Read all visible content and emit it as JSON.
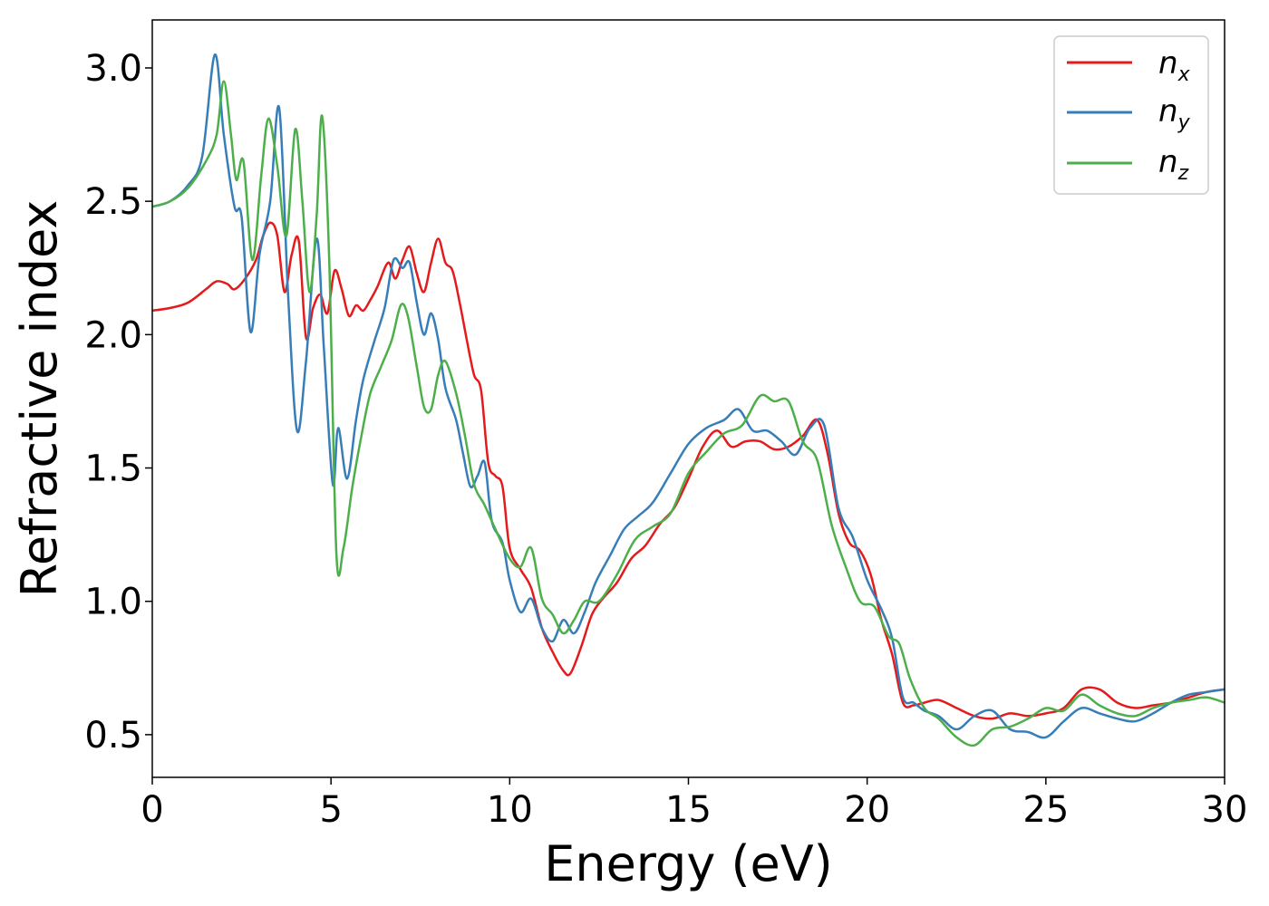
{
  "chart_data": {
    "type": "line",
    "title": "",
    "xlabel": "Energy (eV)",
    "ylabel": "Refractive index",
    "xlim": [
      0,
      30
    ],
    "ylim": [
      0.34,
      3.18
    ],
    "xticks": [
      0,
      5,
      10,
      15,
      20,
      25,
      30
    ],
    "xtick_labels": [
      "0",
      "5",
      "10",
      "15",
      "20",
      "25",
      "30"
    ],
    "yticks": [
      0.5,
      1.0,
      1.5,
      2.0,
      2.5,
      3.0
    ],
    "ytick_labels": [
      "0.5",
      "1.0",
      "1.5",
      "2.0",
      "2.5",
      "3.0"
    ],
    "grid": false,
    "legend": "top-right",
    "series": [
      {
        "name": "n",
        "sub": "x",
        "color": "#e41a1c",
        "x": [
          0,
          0.5,
          1,
          1.5,
          1.8,
          2.1,
          2.3,
          2.6,
          2.9,
          3.1,
          3.3,
          3.5,
          3.7,
          3.9,
          4.1,
          4.3,
          4.5,
          4.7,
          4.9,
          5.1,
          5.3,
          5.5,
          5.7,
          5.9,
          6.1,
          6.3,
          6.6,
          6.8,
          7.0,
          7.2,
          7.4,
          7.6,
          7.8,
          8.0,
          8.2,
          8.4,
          8.6,
          8.8,
          9.0,
          9.2,
          9.4,
          9.6,
          9.8,
          10.0,
          10.3,
          10.6,
          10.9,
          11.2,
          11.5,
          11.7,
          12.0,
          12.3,
          12.6,
          13.0,
          13.4,
          13.8,
          14.2,
          14.6,
          15.0,
          15.4,
          15.8,
          16.2,
          16.6,
          17.0,
          17.4,
          17.8,
          18.2,
          18.6,
          18.9,
          19.2,
          19.5,
          19.8,
          20.1,
          20.4,
          20.7,
          21.0,
          21.3,
          21.6,
          22.0,
          22.5,
          23.0,
          23.5,
          24.0,
          24.5,
          25.0,
          25.5,
          26.0,
          26.5,
          27.0,
          27.5,
          28.0,
          28.5,
          29.0,
          29.5,
          30.0
        ],
        "y": [
          2.09,
          2.1,
          2.12,
          2.17,
          2.2,
          2.19,
          2.17,
          2.21,
          2.28,
          2.37,
          2.42,
          2.37,
          2.16,
          2.3,
          2.35,
          1.99,
          2.1,
          2.15,
          2.08,
          2.24,
          2.17,
          2.07,
          2.11,
          2.09,
          2.13,
          2.18,
          2.27,
          2.21,
          2.28,
          2.33,
          2.23,
          2.16,
          2.27,
          2.36,
          2.27,
          2.24,
          2.12,
          1.98,
          1.85,
          1.79,
          1.52,
          1.47,
          1.43,
          1.2,
          1.12,
          1.05,
          0.9,
          0.81,
          0.74,
          0.73,
          0.83,
          0.95,
          1.01,
          1.07,
          1.16,
          1.21,
          1.29,
          1.35,
          1.46,
          1.58,
          1.64,
          1.58,
          1.6,
          1.6,
          1.57,
          1.58,
          1.62,
          1.68,
          1.55,
          1.33,
          1.22,
          1.19,
          1.1,
          0.93,
          0.8,
          0.62,
          0.61,
          0.62,
          0.63,
          0.6,
          0.57,
          0.56,
          0.58,
          0.57,
          0.58,
          0.6,
          0.67,
          0.67,
          0.62,
          0.6,
          0.61,
          0.62,
          0.64,
          0.66,
          0.67
        ]
      },
      {
        "name": "n",
        "sub": "y",
        "color": "#377eb8",
        "x": [
          0,
          0.5,
          1,
          1.4,
          1.75,
          2.0,
          2.3,
          2.5,
          2.75,
          3.0,
          3.3,
          3.55,
          3.8,
          4.05,
          4.3,
          4.6,
          4.8,
          5.05,
          5.2,
          5.45,
          5.7,
          5.9,
          6.2,
          6.5,
          6.75,
          7.0,
          7.2,
          7.4,
          7.6,
          7.8,
          8.0,
          8.2,
          8.5,
          8.7,
          8.9,
          9.1,
          9.3,
          9.5,
          9.8,
          10.0,
          10.3,
          10.6,
          10.9,
          11.2,
          11.5,
          11.8,
          12.1,
          12.4,
          12.8,
          13.2,
          13.6,
          14.0,
          14.5,
          15.0,
          15.5,
          16.0,
          16.4,
          16.8,
          17.2,
          17.6,
          18.0,
          18.4,
          18.8,
          19.2,
          19.6,
          20.0,
          20.4,
          20.7,
          21.0,
          21.3,
          21.6,
          22.0,
          22.5,
          23.0,
          23.5,
          24.0,
          24.5,
          25.0,
          25.5,
          26.0,
          26.5,
          27.0,
          27.5,
          28.0,
          28.5,
          29.0,
          29.5,
          30.0
        ],
        "y": [
          2.48,
          2.5,
          2.56,
          2.67,
          3.05,
          2.75,
          2.48,
          2.44,
          2.01,
          2.3,
          2.5,
          2.85,
          2.15,
          1.64,
          1.9,
          2.36,
          1.95,
          1.44,
          1.65,
          1.46,
          1.68,
          1.83,
          1.97,
          2.1,
          2.28,
          2.25,
          2.27,
          2.12,
          2.0,
          2.08,
          1.98,
          1.8,
          1.68,
          1.55,
          1.43,
          1.47,
          1.52,
          1.3,
          1.22,
          1.08,
          0.96,
          1.01,
          0.9,
          0.85,
          0.93,
          0.88,
          0.96,
          1.07,
          1.17,
          1.27,
          1.32,
          1.37,
          1.48,
          1.59,
          1.65,
          1.68,
          1.72,
          1.64,
          1.64,
          1.6,
          1.55,
          1.65,
          1.66,
          1.35,
          1.24,
          1.08,
          0.97,
          0.86,
          0.64,
          0.62,
          0.59,
          0.57,
          0.52,
          0.57,
          0.59,
          0.52,
          0.51,
          0.49,
          0.55,
          0.6,
          0.58,
          0.56,
          0.55,
          0.58,
          0.62,
          0.65,
          0.66,
          0.67
        ]
      },
      {
        "name": "n",
        "sub": "z",
        "color": "#4daf4a",
        "x": [
          0,
          0.5,
          1,
          1.5,
          1.8,
          2.0,
          2.2,
          2.35,
          2.55,
          2.8,
          3.05,
          3.25,
          3.5,
          3.75,
          4.0,
          4.2,
          4.4,
          4.6,
          4.75,
          4.95,
          5.15,
          5.35,
          5.6,
          5.85,
          6.1,
          6.4,
          6.7,
          6.95,
          7.15,
          7.4,
          7.6,
          7.8,
          8.0,
          8.2,
          8.5,
          8.75,
          9.0,
          9.3,
          9.6,
          10.0,
          10.3,
          10.6,
          10.9,
          11.2,
          11.5,
          11.8,
          12.1,
          12.5,
          13.0,
          13.5,
          14.0,
          14.5,
          15.0,
          15.5,
          16.0,
          16.5,
          17.0,
          17.4,
          17.8,
          18.2,
          18.6,
          19.0,
          19.4,
          19.8,
          20.2,
          20.6,
          20.9,
          21.2,
          21.6,
          22.0,
          22.5,
          23.0,
          23.5,
          24.0,
          24.5,
          25.0,
          25.5,
          26.0,
          26.5,
          27.0,
          27.5,
          28.0,
          28.5,
          29.0,
          29.5,
          30.0
        ],
        "y": [
          2.48,
          2.5,
          2.55,
          2.65,
          2.75,
          2.95,
          2.75,
          2.58,
          2.65,
          2.28,
          2.6,
          2.81,
          2.63,
          2.37,
          2.77,
          2.5,
          2.16,
          2.45,
          2.82,
          2.28,
          1.18,
          1.2,
          1.43,
          1.62,
          1.78,
          1.88,
          1.98,
          2.11,
          2.07,
          1.88,
          1.73,
          1.72,
          1.85,
          1.9,
          1.78,
          1.62,
          1.44,
          1.36,
          1.27,
          1.16,
          1.13,
          1.2,
          1.01,
          0.95,
          0.88,
          0.93,
          1.0,
          1.0,
          1.1,
          1.23,
          1.28,
          1.33,
          1.48,
          1.56,
          1.63,
          1.66,
          1.77,
          1.75,
          1.75,
          1.6,
          1.53,
          1.29,
          1.13,
          1.0,
          0.98,
          0.87,
          0.84,
          0.71,
          0.6,
          0.56,
          0.49,
          0.46,
          0.52,
          0.53,
          0.56,
          0.6,
          0.59,
          0.65,
          0.61,
          0.58,
          0.57,
          0.6,
          0.62,
          0.63,
          0.64,
          0.62
        ]
      }
    ]
  }
}
